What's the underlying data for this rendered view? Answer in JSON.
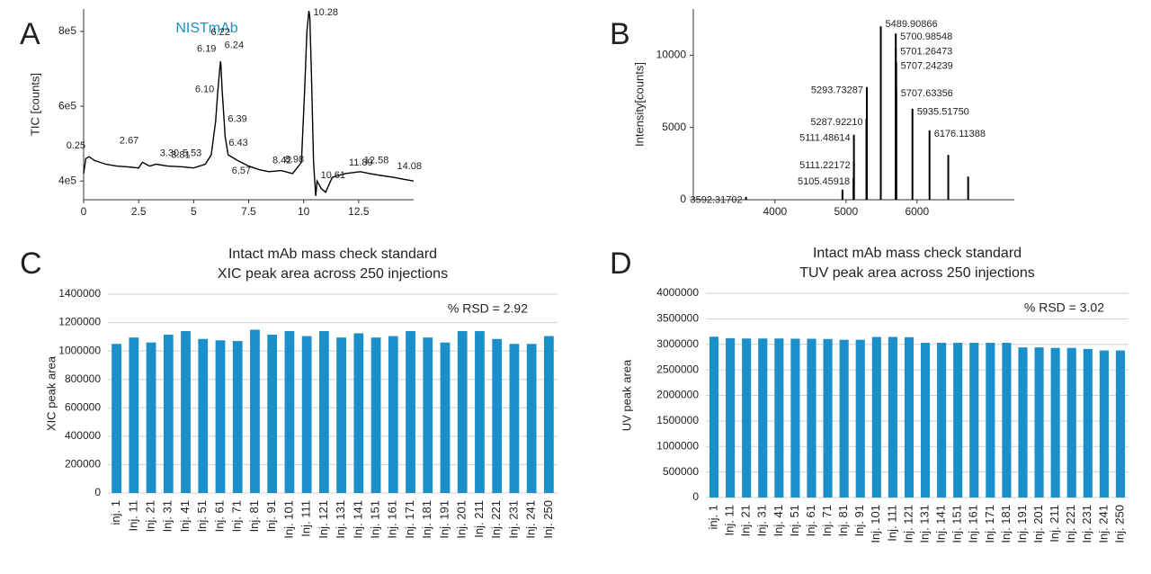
{
  "chart_data": [
    {
      "type": "line",
      "panel": "A",
      "title": "NISTmAb",
      "title_color": "#1a8fc9",
      "ylabel": "TIC [counts]",
      "x": [
        0,
        0.1,
        0.25,
        0.5,
        1,
        1.5,
        2,
        2.5,
        2.67,
        3,
        3.3,
        3.81,
        4.5,
        5,
        5.53,
        5.8,
        6.0,
        6.1,
        6.19,
        6.22,
        6.24,
        6.3,
        6.39,
        6.43,
        6.57,
        7,
        7.5,
        8,
        8.42,
        8.98,
        9.5,
        9.9,
        10.05,
        10.15,
        10.24,
        10.28,
        10.35,
        10.45,
        10.55,
        10.61,
        10.8,
        11,
        11.3,
        11.89,
        12.58,
        13,
        13.5,
        14.08,
        14.5,
        15
      ],
      "values": [
        420000,
        460000,
        465000,
        455000,
        445000,
        440000,
        438000,
        435000,
        450000,
        440000,
        445000,
        440000,
        438000,
        435000,
        445000,
        470000,
        560000,
        640000,
        700000,
        720000,
        710000,
        640000,
        560000,
        520000,
        470000,
        455000,
        440000,
        430000,
        425000,
        428000,
        420000,
        450000,
        650000,
        800000,
        855000,
        840000,
        700000,
        450000,
        360000,
        400000,
        380000,
        370000,
        410000,
        420000,
        425000,
        420000,
        415000,
        410000,
        405000,
        400000
      ],
      "color": "#000000",
      "peak_labels": [
        {
          "value": 0.25,
          "label": "0.25"
        },
        {
          "value": 2.67,
          "label": "2.67"
        },
        {
          "value": 3.3,
          "label": "3.30"
        },
        {
          "value": 3.81,
          "label": "3.81"
        },
        {
          "value": 5.53,
          "label": "5.53"
        },
        {
          "value": 6.1,
          "label": "6.10"
        },
        {
          "value": 6.19,
          "label": "6.19"
        },
        {
          "value": 6.22,
          "label": "6.22"
        },
        {
          "value": 6.24,
          "label": "6.24"
        },
        {
          "value": 6.39,
          "label": "6.39"
        },
        {
          "value": 6.43,
          "label": "6.43"
        },
        {
          "value": 6.57,
          "label": "6.57"
        },
        {
          "value": 8.42,
          "label": "8.42"
        },
        {
          "value": 8.98,
          "label": "8.98"
        },
        {
          "value": 10.24,
          "label": "10.24"
        },
        {
          "value": 10.28,
          "label": "10.28"
        },
        {
          "value": 10.61,
          "label": "10.61"
        },
        {
          "value": 11.89,
          "label": "11.89"
        },
        {
          "value": 12.58,
          "label": "12.58"
        },
        {
          "value": 14.08,
          "label": "14.08"
        }
      ],
      "xlim": [
        0,
        15
      ],
      "xticks": [
        0,
        2.5,
        5,
        7.5,
        10,
        12.5
      ],
      "ylim": [
        350000,
        860000
      ],
      "yticks": [
        {
          "value": 400000,
          "label": "4e5"
        },
        {
          "value": 600000,
          "label": "6e5"
        },
        {
          "value": 800000,
          "label": "8e5"
        }
      ]
    },
    {
      "type": "stem",
      "panel": "B",
      "ylabel": "Intensity[counts]",
      "x": [
        3592.31702,
        4950,
        5105.45918,
        5111.22172,
        5111.48614,
        5287.9221,
        5293.73287,
        5489.90866,
        5700.98548,
        5701.26473,
        5707.24239,
        5707.63356,
        5935.5175,
        6176.11388,
        6440,
        6720
      ],
      "x_labels": [
        "3592.31702",
        null,
        "5105.45918",
        "5111.22172",
        "5111.48614",
        "5287.92210",
        "5293.73287",
        "5489.90866",
        "5700.98548",
        "5701.26473",
        "5707.24239",
        "5707.63356",
        "5935.51750",
        "6176.11388",
        null,
        null
      ],
      "values": [
        200,
        700,
        1500,
        2600,
        4500,
        5600,
        7800,
        12000,
        11500,
        10500,
        9500,
        7600,
        6300,
        4800,
        3100,
        1600
      ],
      "color": "#000000",
      "xlim": [
        2850,
        7370
      ],
      "xticks": [
        4000,
        5000,
        6000
      ],
      "ylim": [
        0,
        13200
      ],
      "yticks": [
        0,
        5000,
        10000
      ]
    },
    {
      "type": "bar",
      "panel": "C",
      "title": "Intact mAb mass check standard",
      "subtitle": "XIC peak area across 250 injections",
      "annotation": "% RSD = 2.92",
      "ylabel": "XIC peak area",
      "color": "#1a8fc9",
      "grid": true,
      "categories": [
        "inj. 1",
        "Inj. 11",
        "Inj. 21",
        "Inj. 31",
        "Inj. 41",
        "Inj. 51",
        "Inj. 61",
        "Inj. 71",
        "Inj. 81",
        "Inj. 91",
        "Inj. 101",
        "Inj. 111",
        "Inj. 121",
        "Inj. 131",
        "Inj. 141",
        "Inj. 151",
        "Inj. 161",
        "Inj. 171",
        "Inj. 181",
        "Inj. 191",
        "Inj. 201",
        "Inj. 211",
        "Inj. 221",
        "Inj. 231",
        "Inj. 241",
        "Inj. 250"
      ],
      "values": [
        1050000,
        1095000,
        1060000,
        1115000,
        1140000,
        1085000,
        1075000,
        1070000,
        1150000,
        1115000,
        1140000,
        1105000,
        1140000,
        1095000,
        1125000,
        1095000,
        1105000,
        1140000,
        1095000,
        1060000,
        1140000,
        1140000,
        1085000,
        1050000,
        1050000,
        1105000
      ],
      "ylim": [
        0,
        1400000
      ],
      "yticks": [
        0,
        200000,
        400000,
        600000,
        800000,
        1000000,
        1200000,
        1400000
      ]
    },
    {
      "type": "bar",
      "panel": "D",
      "title": "Intact mAb mass check standard",
      "subtitle": "TUV peak area across 250 injections",
      "annotation": "% RSD = 3.02",
      "ylabel": "UV peak area",
      "color": "#1a8fc9",
      "grid": true,
      "categories": [
        "inj. 1",
        "Inj. 11",
        "Inj. 21",
        "Inj. 31",
        "Inj. 41",
        "Inj. 51",
        "Inj. 61",
        "Inj. 71",
        "Inj. 81",
        "Inj. 91",
        "Inj. 101",
        "Inj. 111",
        "Inj. 121",
        "Inj. 131",
        "Inj. 141",
        "Inj. 151",
        "Inj. 161",
        "Inj. 171",
        "Inj. 181",
        "Inj. 191",
        "Inj. 201",
        "Inj. 211",
        "Inj. 221",
        "Inj. 231",
        "Inj. 241",
        "Inj. 250"
      ],
      "values": [
        3150000,
        3120000,
        3115000,
        3115000,
        3115000,
        3110000,
        3110000,
        3105000,
        3090000,
        3090000,
        3145000,
        3145000,
        3140000,
        3030000,
        3030000,
        3030000,
        3030000,
        3030000,
        3030000,
        2940000,
        2940000,
        2930000,
        2930000,
        2910000,
        2880000,
        2880000
      ],
      "ylim": [
        0,
        4000000
      ],
      "yticks": [
        0,
        500000,
        1000000,
        1500000,
        2000000,
        2500000,
        3000000,
        3500000,
        4000000
      ]
    }
  ]
}
